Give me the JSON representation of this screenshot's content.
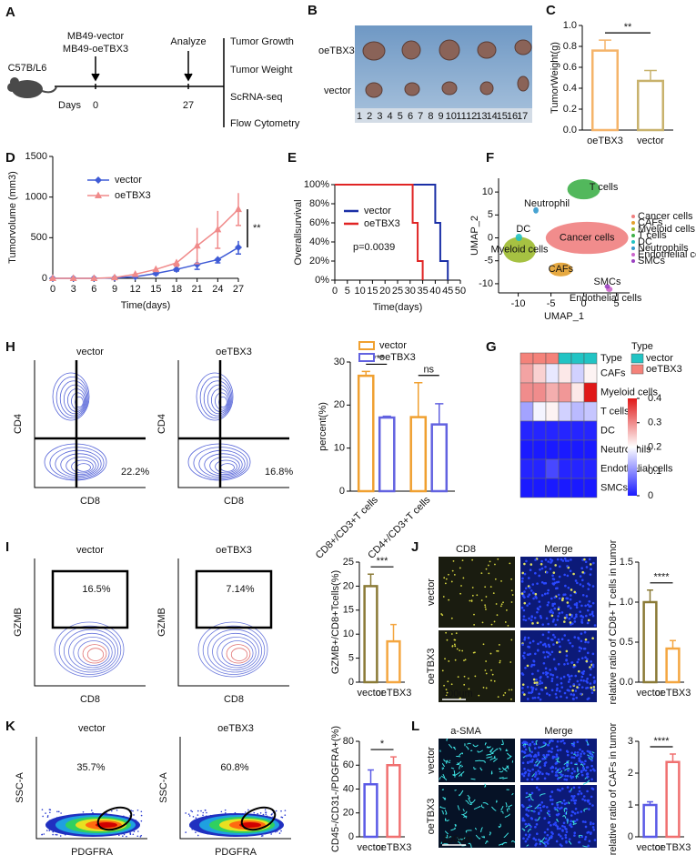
{
  "panel_a": {
    "label": "A",
    "strain": "C57B/L6",
    "groups": [
      "MB49-vector",
      "MB49-oeTBX3"
    ],
    "analyze": "Analyze",
    "days": "Days",
    "day_start": "0",
    "day_end": "27",
    "assays": [
      "Tumor Growth",
      "Tumor Weight",
      "ScRNA-seq",
      "Flow Cytometry"
    ]
  },
  "panel_b": {
    "label": "B",
    "rows": [
      "oeTBX3",
      "vector"
    ],
    "ruler": [
      "1",
      "2",
      "3",
      "4",
      "5",
      "6",
      "7",
      "8",
      "9",
      "10",
      "11",
      "12",
      "13",
      "14",
      "15",
      "16",
      "17"
    ]
  },
  "panel_h": {
    "label": "H",
    "flow": [
      {
        "title": "vector",
        "ylabel": "CD4",
        "xlabel": "CD8",
        "gate": "22.2%"
      },
      {
        "title": "oeTBX3",
        "ylabel": "CD4",
        "xlabel": "CD8",
        "gate": "16.8%"
      }
    ]
  },
  "panel_i": {
    "label": "I",
    "flow": [
      {
        "title": "vector",
        "ylabel": "GZMB",
        "xlabel": "CD8",
        "gate": "16.5%"
      },
      {
        "title": "oeTBX3",
        "ylabel": "GZMB",
        "xlabel": "CD8",
        "gate": "7.14%"
      }
    ]
  },
  "panel_j": {
    "label": "J",
    "columns": [
      "CD8",
      "Merge"
    ],
    "rows": [
      "vector",
      "oeTBX3"
    ],
    "scale": "100um"
  },
  "panel_k": {
    "label": "K",
    "flow": [
      {
        "title": "vector",
        "ylabel": "SSC-A",
        "xlabel": "PDGFRA",
        "gate": "35.7%"
      },
      {
        "title": "oeTBX3",
        "ylabel": "SSC-A",
        "xlabel": "PDGFRA",
        "gate": "60.8%"
      }
    ]
  },
  "panel_l": {
    "label": "L",
    "columns": [
      "a-SMA",
      "Merge"
    ],
    "rows": [
      "vector",
      "oeTBX3"
    ],
    "scale": "100um"
  },
  "chart_data": [
    {
      "type": "bar",
      "label": "C",
      "categories": [
        "oeTBX3",
        "vector"
      ],
      "values": [
        0.76,
        0.47
      ],
      "errors": [
        0.1,
        0.1
      ],
      "colors": [
        "#f5b46a",
        "#c8b26c"
      ],
      "ylabel": "TumorWeight(g)",
      "ylim": [
        0,
        1
      ],
      "yticks": [
        {
          "value": 0,
          "label": "0.0"
        },
        0.2,
        0.4,
        0.6,
        0.8,
        {
          "value": 1,
          "label": "1.0"
        }
      ],
      "significance": "**"
    },
    {
      "type": "line",
      "label": "D",
      "x": [
        0,
        3,
        6,
        9,
        12,
        15,
        18,
        21,
        24,
        27
      ],
      "xlabel": "Time(days)",
      "ylabel": "Tumorvolume (mm3)",
      "xlim": [
        0,
        27
      ],
      "xticks": [
        0,
        3,
        6,
        9,
        12,
        15,
        18,
        21,
        24,
        27
      ],
      "ylim": [
        0,
        1500
      ],
      "yticks": [
        0,
        500,
        1000,
        1500
      ],
      "significance": "**",
      "series": [
        {
          "name": "vector",
          "color": "#3f5bd6",
          "marker": "diamond",
          "values": [
            0,
            0,
            0,
            5,
            20,
            60,
            110,
            170,
            230,
            380
          ],
          "errors": [
            0,
            0,
            0,
            5,
            10,
            15,
            20,
            60,
            40,
            80
          ]
        },
        {
          "name": "oeTBX3",
          "color": "#f08a8a",
          "marker": "triangle",
          "values": [
            0,
            0,
            0,
            10,
            50,
            110,
            190,
            400,
            600,
            850
          ],
          "errors": [
            0,
            0,
            0,
            5,
            15,
            25,
            40,
            220,
            230,
            200
          ]
        }
      ]
    },
    {
      "type": "step",
      "label": "E",
      "xlabel": "Time(days)",
      "ylabel": "Overallsurvival",
      "annotation": "p=0.0039",
      "xlim": [
        0,
        50
      ],
      "xticks": [
        0,
        5,
        10,
        15,
        20,
        25,
        30,
        35,
        40,
        45,
        50
      ],
      "ylim": [
        0,
        100
      ],
      "yticks": [
        {
          "value": 0,
          "label": "0%"
        },
        {
          "value": 20,
          "label": "20%"
        },
        {
          "value": 40,
          "label": "40%"
        },
        {
          "value": 60,
          "label": "60%"
        },
        {
          "value": 80,
          "label": "80%"
        },
        {
          "value": 100,
          "label": "100%"
        }
      ],
      "series": [
        {
          "name": "vector",
          "color": "#1b2fa6",
          "x": [
            0,
            40,
            40,
            42,
            42,
            45,
            45
          ],
          "values": [
            100,
            100,
            60,
            60,
            20,
            20,
            0
          ]
        },
        {
          "name": "oeTBX3",
          "color": "#e02424",
          "x": [
            0,
            31,
            31,
            33,
            33,
            35,
            35
          ],
          "values": [
            100,
            100,
            60,
            60,
            20,
            20,
            0
          ]
        }
      ]
    },
    {
      "type": "scatter",
      "label": "F",
      "xlabel": "UMAP_1",
      "ylabel": "UMAP_2",
      "xlim": [
        -13,
        7
      ],
      "ylim": [
        -12,
        13
      ],
      "xticks": [
        -10,
        -5,
        0,
        5
      ],
      "yticks": [
        -10,
        -5,
        0,
        5,
        10
      ],
      "clusters": [
        {
          "name": "Cancer cells",
          "label": "Cancer cells",
          "color": "#f07f7f",
          "x": 0.5,
          "y": 0,
          "rx": 6.3,
          "ry": 3.5
        },
        {
          "name": "CAFs",
          "label": "CAFs",
          "color": "#e3a02c",
          "x": -3.5,
          "y": -6.9,
          "rx": 1.8,
          "ry": 1.5
        },
        {
          "name": "Myeloid cells",
          "label": "Myeloid cells",
          "color": "#9cba2e",
          "x": -9.8,
          "y": -2.6,
          "rx": 2.5,
          "ry": 2.8
        },
        {
          "name": "T cells",
          "label": "T cells",
          "color": "#3fb04a",
          "x": 0,
          "y": 10.6,
          "rx": 2.5,
          "ry": 2.2
        },
        {
          "name": "DC",
          "label": "DC",
          "color": "#22c2c2",
          "x": -9.9,
          "y": 0.1,
          "rx": 0.5,
          "ry": 0.8
        },
        {
          "name": "Neutrophils",
          "label": "Neutrophil",
          "color": "#3399cc",
          "x": -7.3,
          "y": 6,
          "rx": 0.4,
          "ry": 0.7
        },
        {
          "name": "Endothelial cells",
          "label": "Endothelial cells",
          "color": "#cc66cc",
          "x": 3.9,
          "y": -11.2,
          "rx": 0.5,
          "ry": 0.6
        },
        {
          "name": "SMCs",
          "label": "SMCs",
          "color": "#9a40c0",
          "x": 3.6,
          "y": -10.6,
          "rx": 0.4,
          "ry": 0.5
        }
      ]
    },
    {
      "type": "heatmap",
      "label": "G",
      "type_label": "Type",
      "legend_title": "Type",
      "groups": [
        {
          "name": "vector",
          "color": "#22c4c4"
        },
        {
          "name": "oeTBX3",
          "color": "#f4827a"
        }
      ],
      "column_groups": [
        1,
        1,
        1,
        0,
        0,
        0
      ],
      "rows": [
        "CAFs",
        "Myeloid cells",
        "T cells",
        "DC",
        "Neutrophils",
        "Endothelial cells",
        "SMCs"
      ],
      "row_label_colors": [
        "#d42020",
        "#000000",
        "#d42020",
        "#000000",
        "#000000",
        "#000000",
        "#000000"
      ],
      "values": [
        [
          0.28,
          0.24,
          0.18,
          0.22,
          0.16,
          0.21
        ],
        [
          0.3,
          0.3,
          0.27,
          0.29,
          0.22,
          0.4
        ],
        [
          0.12,
          0.19,
          0.21,
          0.16,
          0.14,
          0.15
        ],
        [
          0.01,
          0.01,
          0.01,
          0.01,
          0.01,
          0.01
        ],
        [
          0,
          0,
          0,
          0,
          0,
          0
        ],
        [
          0.01,
          0.01,
          0.04,
          0.01,
          0.01,
          0.01
        ],
        [
          0,
          0,
          0,
          0,
          0,
          0
        ]
      ],
      "colormap": [
        "#1a1aff",
        "#ffffff",
        "#e01818"
      ],
      "clim": [
        0,
        0.4
      ],
      "cticks": [
        0,
        0.1,
        0.2,
        0.3,
        0.4
      ]
    },
    {
      "type": "bar",
      "categories": [
        "CD8+/CD3+T cells",
        "CD4+/CD3+T cells"
      ],
      "ylabel": "percent(%)",
      "ylim": [
        0,
        30
      ],
      "yticks": [
        0,
        10,
        20,
        30
      ],
      "significance": [
        "****",
        "ns"
      ],
      "series": [
        {
          "name": "vector",
          "color": "#f0a030",
          "values": [
            26.8,
            17.2
          ],
          "errors": [
            1,
            8
          ]
        },
        {
          "name": "oeTBX3",
          "color": "#6262e0",
          "values": [
            17.1,
            15.5
          ],
          "errors": [
            0.3,
            4.8
          ]
        }
      ]
    },
    {
      "type": "bar",
      "categories": [
        "vector",
        "oeTBX3"
      ],
      "values": [
        20,
        8.5
      ],
      "errors": [
        2.5,
        3.5
      ],
      "colors": [
        "#8a7a36",
        "#f4a640"
      ],
      "ylabel": "GZMB+/CD8+Tcells(%)",
      "ylim": [
        0,
        25
      ],
      "yticks": [
        0,
        5,
        10,
        15,
        20,
        25
      ],
      "significance": "***"
    },
    {
      "type": "bar",
      "categories": [
        "vector",
        "oeTBX3"
      ],
      "values": [
        1.0,
        0.42
      ],
      "errors": [
        0.15,
        0.1
      ],
      "colors": [
        "#8a7a36",
        "#f4a640"
      ],
      "ylabel": "relative ratio of CD8+ T cells in tumor",
      "ylim": [
        0,
        1.5
      ],
      "yticks": [
        {
          "value": 0,
          "label": "0.0"
        },
        0.5,
        {
          "value": 1,
          "label": "1.0"
        },
        1.5
      ],
      "significance": "****"
    },
    {
      "type": "bar",
      "categories": [
        "vector",
        "oeTBX3"
      ],
      "values": [
        44,
        60
      ],
      "errors": [
        12,
        7
      ],
      "colors": [
        "#5a5ae6",
        "#f07070"
      ],
      "ylabel": "CD45-/CD31-/PDGFRA+(%)",
      "ylim": [
        0,
        80
      ],
      "yticks": [
        0,
        20,
        40,
        60,
        80
      ],
      "significance": "*"
    },
    {
      "type": "bar",
      "categories": [
        "vector",
        "oeTBX3"
      ],
      "values": [
        1.0,
        2.35
      ],
      "errors": [
        0.1,
        0.25
      ],
      "colors": [
        "#5a5ae6",
        "#f07070"
      ],
      "ylabel": "relative ratio of CAFs in tumor",
      "ylim": [
        0,
        3
      ],
      "yticks": [
        0,
        1,
        2,
        3
      ],
      "significance": "****"
    }
  ]
}
